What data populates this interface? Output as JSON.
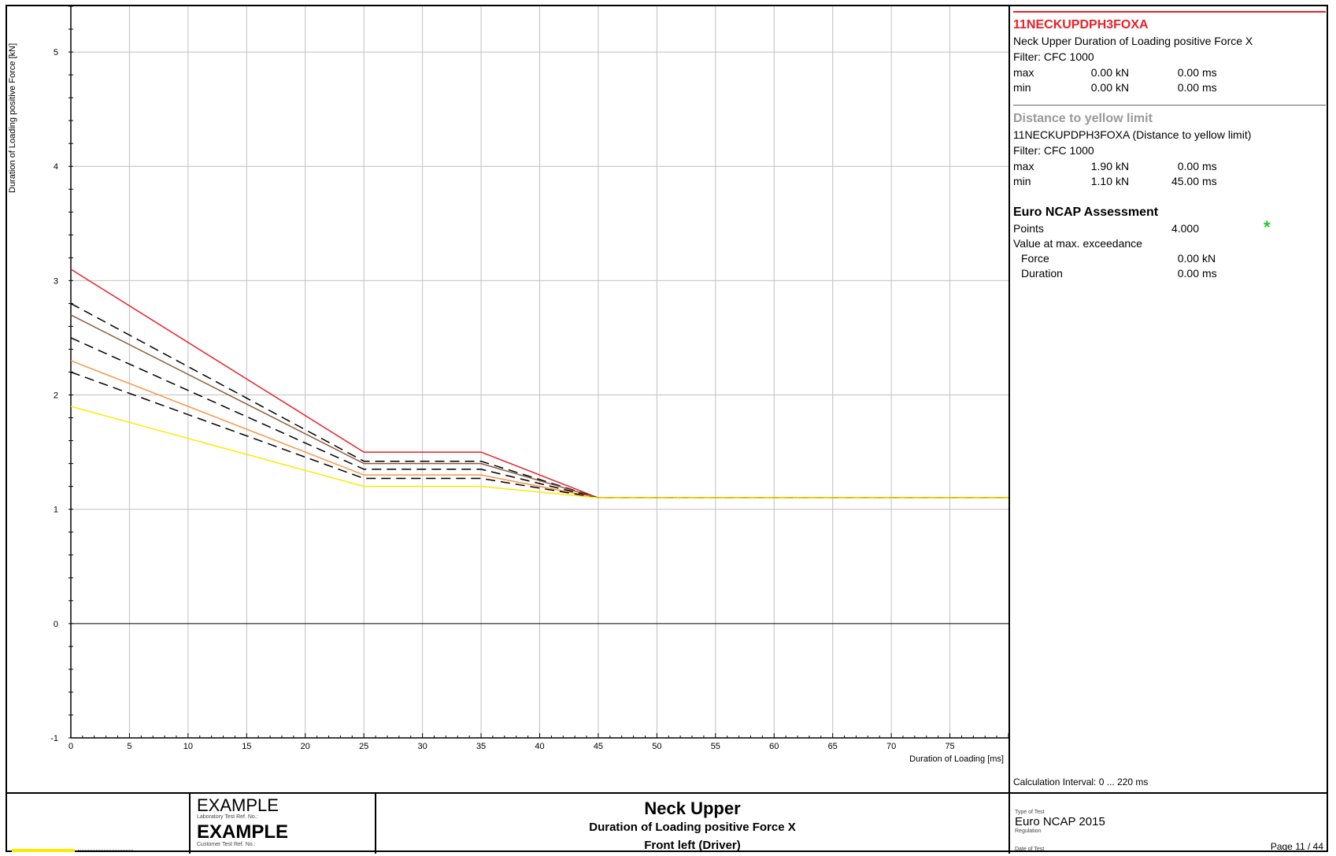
{
  "colors": {
    "red_limit": "#e8202a",
    "brown_limit": "#8b5a3c",
    "orange_limit": "#f79646",
    "yellow_limit": "#ffe800",
    "dashed": "#000000",
    "star": "#22cc22",
    "grid": "#c0c0c0"
  },
  "chart_data": {
    "type": "line",
    "xlabel": "Duration of Loading  [ms]",
    "ylabel": "Duration of Loading positive Force  [kN]",
    "xlim": [
      0,
      80
    ],
    "ylim": [
      -1,
      5.4
    ],
    "x_ticks": [
      "0",
      "5",
      "10",
      "15",
      "20",
      "25",
      "30",
      "35",
      "40",
      "45",
      "50",
      "55",
      "60",
      "65",
      "70",
      "75"
    ],
    "y_ticks": [
      "-1",
      "0",
      "1",
      "2",
      "3",
      "4",
      "5"
    ],
    "grid": true,
    "series": [
      {
        "color": "#e8202a",
        "style": "solid",
        "x": [
          0,
          25,
          35,
          45,
          80
        ],
        "y": [
          3.1,
          1.5,
          1.5,
          1.1,
          1.1
        ]
      },
      {
        "color": "#000000",
        "style": "dashed",
        "x": [
          0,
          25,
          35,
          45,
          80
        ],
        "y": [
          2.8,
          1.42,
          1.42,
          1.1,
          1.1
        ]
      },
      {
        "color": "#8b5a3c",
        "style": "solid",
        "x": [
          0,
          25,
          35,
          45,
          80
        ],
        "y": [
          2.7,
          1.4,
          1.4,
          1.1,
          1.1
        ]
      },
      {
        "color": "#000000",
        "style": "dashed",
        "x": [
          0,
          25,
          35,
          45,
          80
        ],
        "y": [
          2.5,
          1.35,
          1.35,
          1.1,
          1.1
        ]
      },
      {
        "color": "#f79646",
        "style": "solid",
        "x": [
          0,
          25,
          35,
          45,
          80
        ],
        "y": [
          2.3,
          1.3,
          1.3,
          1.1,
          1.1
        ]
      },
      {
        "color": "#000000",
        "style": "dashed",
        "x": [
          0,
          25,
          35,
          45,
          80
        ],
        "y": [
          2.2,
          1.27,
          1.27,
          1.1,
          1.1
        ]
      },
      {
        "color": "#ffe800",
        "style": "solid",
        "x": [
          0,
          25,
          35,
          45,
          80
        ],
        "y": [
          1.9,
          1.2,
          1.2,
          1.1,
          1.1
        ]
      }
    ]
  },
  "panel": {
    "channel": {
      "code": "11NECKUPDPH3FOXA",
      "description": "Neck Upper Duration of Loading positive Force X",
      "filter": "Filter:  CFC 1000",
      "max_label": "max",
      "max_val": "0.00",
      "max_unit": "kN",
      "max_t": "0.00",
      "max_tunit": "ms",
      "min_label": "min",
      "min_val": "0.00",
      "min_unit": "kN",
      "min_t": "0.00",
      "min_tunit": "ms"
    },
    "limit": {
      "title": "Distance to yellow limit",
      "description": "11NECKUPDPH3FOXA (Distance to yellow limit)",
      "filter": "Filter:  CFC 1000",
      "max_label": "max",
      "max_val": "1.90",
      "max_unit": "kN",
      "max_t": "0.00",
      "max_tunit": "ms",
      "min_label": "min",
      "min_val": "1.10",
      "min_unit": "kN",
      "min_t": "45.00",
      "min_tunit": "ms"
    },
    "assessment": {
      "title": "Euro NCAP Assessment",
      "points_label": "Points",
      "points_value": "4.000",
      "star": "*",
      "exceed_label": "Value at max. exceedance",
      "force_label": "Force",
      "force_value": "0.00",
      "force_unit": "kN",
      "duration_label": "Duration",
      "duration_value": "0.00",
      "duration_unit": "ms"
    },
    "calc_interval": "Calculation Interval: 0 ... 220 ms"
  },
  "footer": {
    "lab_ref": "EXAMPLE",
    "lab_ref_label": "Laboratory Test Ref. No.:",
    "cust_ref": "EXAMPLE",
    "cust_ref_label": "Customer Test Ref. No.:",
    "title": "Neck Upper",
    "subtitle": "Duration of Loading positive Force X",
    "position": "Front left (Driver)",
    "type_label": "Type of Test",
    "type_value": "Euro NCAP 2015",
    "regulation_label": "Regulation",
    "date_label": "Date of Test",
    "page": "Page 11 / 44"
  }
}
